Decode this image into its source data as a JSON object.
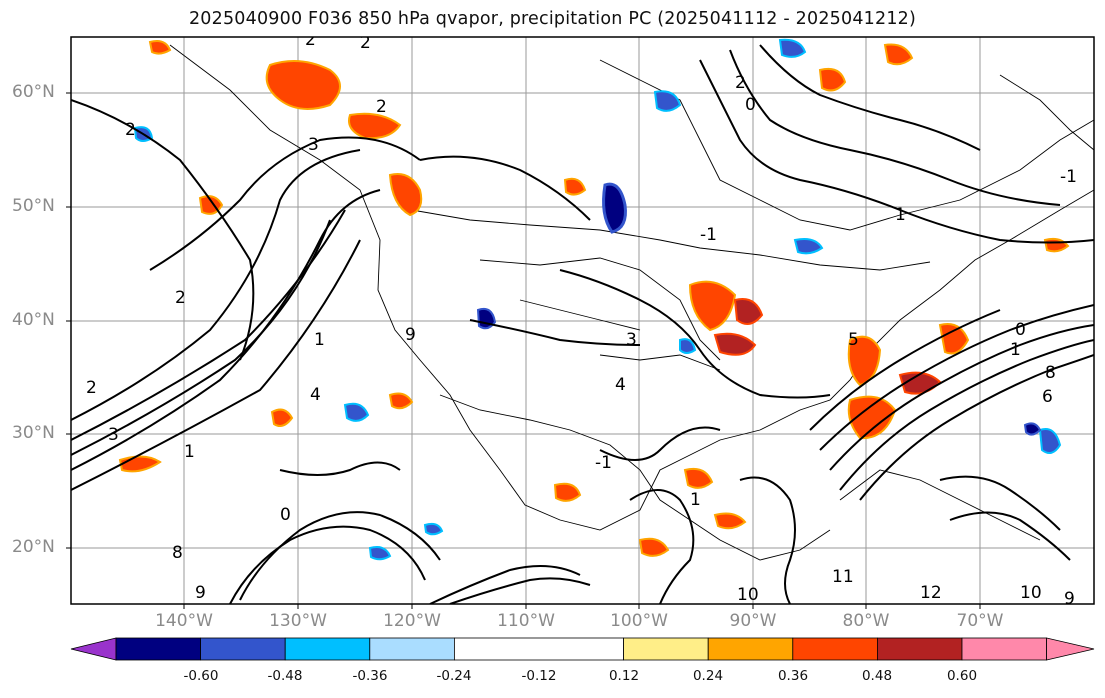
{
  "title": "2025040900 F036 850 hPa qvapor, precipitation PC (2025041112 - 2025041212)",
  "map": {
    "projection": "lat-lon",
    "lon_range": [
      -150,
      -60
    ],
    "lat_range": [
      15,
      65
    ],
    "gridlines": true,
    "lat_labels": [
      "60°N",
      "50°N",
      "40°N",
      "30°N",
      "20°N"
    ],
    "lon_labels": [
      "140°W",
      "130°W",
      "120°W",
      "110°W",
      "100°W",
      "90°W",
      "80°W",
      "70°W"
    ],
    "contour_labels": [
      "2",
      "2",
      "2",
      "3",
      "2",
      "2",
      "1",
      "2",
      "1",
      "3",
      "4",
      "3",
      "1",
      "2",
      "0",
      "9",
      "8",
      "0",
      "1",
      "1",
      "0",
      "4",
      "5",
      "6",
      "8",
      "9",
      "10",
      "11",
      "12",
      "10",
      "9",
      "-1",
      "-1",
      "-1"
    ]
  },
  "colorbar": {
    "colors": [
      "#9933cc",
      "#000080",
      "#3355cc",
      "#00bfff",
      "#aaddff",
      "#ffffff",
      "#ffee88",
      "#ffa500",
      "#ff4500",
      "#b22222",
      "#ff88aa"
    ],
    "tick_labels": [
      "-0.60",
      "-0.48",
      "-0.36",
      "-0.24",
      "-0.12",
      "0.12",
      "0.24",
      "0.36",
      "0.48",
      "0.60"
    ]
  }
}
